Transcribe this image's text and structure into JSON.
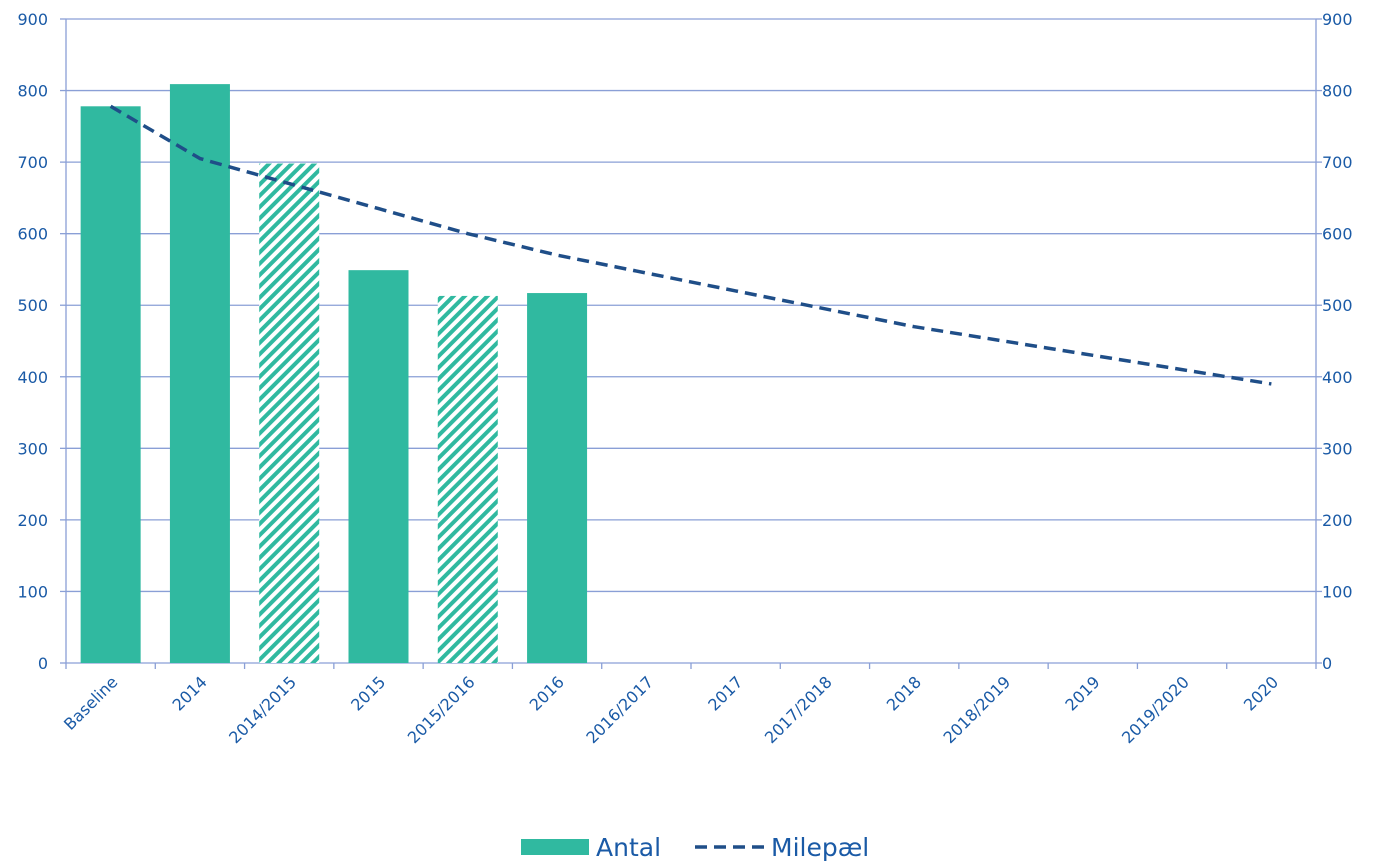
{
  "chart_data": {
    "type": "bar",
    "categories": [
      "Baseline",
      "2014",
      "2014/2015",
      "2015",
      "2015/2016",
      "2016",
      "2016/2017",
      "2017",
      "2017/2018",
      "2018",
      "2018/2019",
      "2019",
      "2019/2020",
      "2020"
    ],
    "series": [
      {
        "name": "Antal",
        "type": "bar",
        "values": [
          778,
          809,
          698,
          549,
          513,
          517,
          null,
          null,
          null,
          null,
          null,
          null,
          null,
          null
        ],
        "hatched": [
          false,
          false,
          true,
          false,
          true,
          false,
          false,
          false,
          false,
          false,
          false,
          false,
          false,
          false
        ],
        "color": "#30b9a0"
      },
      {
        "name": "Milepæl",
        "type": "line",
        "style": "dashed",
        "values": [
          778,
          705,
          670,
          635,
          600,
          570,
          545,
          520,
          495,
          470,
          450,
          430,
          410,
          390
        ],
        "color": "#1f4e88"
      }
    ],
    "ylim": [
      0,
      900
    ],
    "yticks": [
      0,
      100,
      200,
      300,
      400,
      500,
      600,
      700,
      800,
      900
    ],
    "secondary_yaxis": true,
    "grid": true,
    "legend_position": "bottom",
    "colors": {
      "axis_text": "#1a5aa6",
      "gridline": "#8a9fd6",
      "bar": "#30b9a0",
      "line": "#1f4e88"
    }
  }
}
